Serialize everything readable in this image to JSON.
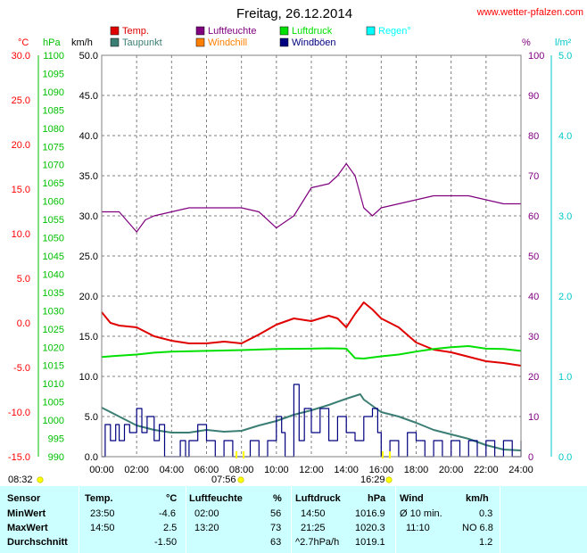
{
  "title": "Freitag, 26.12.2014",
  "site": "www.wetter-pfalzen.com",
  "colors": {
    "temp": "#e00000",
    "dew": "#3b7e74",
    "humidity": "#800080",
    "windchill": "#ff8000",
    "pressure": "#00e000",
    "gust": "#000080",
    "rain": "#00ffff",
    "grid": "#808080",
    "sun": "#ffff00",
    "stats_bg": "#ccffff"
  },
  "axis_units": {
    "temp": "°C",
    "pressure": "hPa",
    "speed": "km/h",
    "humidity": "%",
    "rain": "l/m²"
  },
  "legend": [
    {
      "label": "Temp.",
      "color": "#e00000"
    },
    {
      "label": "Taupunkt",
      "color": "#3b7e74"
    },
    {
      "label": "Luftfeuchte",
      "color": "#800080"
    },
    {
      "label": "Windchill",
      "color": "#ff8000"
    },
    {
      "label": "Luftdruck",
      "color": "#00e000"
    },
    {
      "label": "Windböen",
      "color": "#000080"
    },
    {
      "label": "Regen°",
      "color": "#00ffff"
    }
  ],
  "sun": {
    "sunrise": "08:32",
    "sunset": "16:29",
    "sunrise_marker": "07:56"
  },
  "chart_data": {
    "type": "line",
    "x_labels": [
      "00:00",
      "02:00",
      "04:00",
      "06:00",
      "08:00",
      "10:00",
      "12:00",
      "14:00",
      "16:00",
      "18:00",
      "20:00",
      "22:00",
      "24:00"
    ],
    "xlim": [
      0,
      24
    ],
    "axes": {
      "temp": {
        "ticks": [
          "30.0",
          "25.0",
          "20.0",
          "15.0",
          "10.0",
          "5.0",
          "0.0",
          "-5.0",
          "-10.0",
          "-15.0"
        ],
        "ylim": [
          -15,
          30
        ]
      },
      "pressure": {
        "ticks": [
          "1100",
          "1095",
          "1090",
          "1085",
          "1080",
          "1075",
          "1070",
          "1065",
          "1060",
          "1055",
          "1050",
          "1045",
          "1040",
          "1035",
          "1030",
          "1025",
          "1020",
          "1015",
          "1010",
          "1005",
          "1000",
          "995",
          "990"
        ],
        "ylim": [
          990,
          1100
        ]
      },
      "speed": {
        "ticks": [
          "50.0",
          "45.0",
          "40.0",
          "35.0",
          "30.0",
          "25.0",
          "20.0",
          "15.0",
          "10.0",
          "5.0",
          "0.0"
        ],
        "ylim": [
          0,
          50
        ]
      },
      "humidity": {
        "ticks": [
          "100",
          "90",
          "80",
          "70",
          "60",
          "50",
          "40",
          "30",
          "20",
          "10",
          "0"
        ],
        "ylim": [
          0,
          100
        ]
      },
      "rain": {
        "ticks": [
          "5.0",
          "4.0",
          "3.0",
          "2.0",
          "1.0",
          "0.0"
        ],
        "ylim": [
          0,
          5
        ]
      }
    },
    "series": [
      {
        "name": "Temp.",
        "axis": "temp",
        "color": "#e00000",
        "points": [
          [
            0,
            1.2
          ],
          [
            0.5,
            0.0
          ],
          [
            1,
            -0.3
          ],
          [
            2,
            -0.5
          ],
          [
            3,
            -1.5
          ],
          [
            4,
            -2.0
          ],
          [
            5,
            -2.3
          ],
          [
            6,
            -2.3
          ],
          [
            7,
            -2.1
          ],
          [
            8,
            -2.3
          ],
          [
            9,
            -1.3
          ],
          [
            10,
            -0.2
          ],
          [
            11,
            0.5
          ],
          [
            12,
            0.2
          ],
          [
            13,
            0.8
          ],
          [
            13.5,
            0.5
          ],
          [
            14,
            -0.5
          ],
          [
            14.5,
            1.0
          ],
          [
            15,
            2.3
          ],
          [
            15.5,
            1.5
          ],
          [
            16,
            0.5
          ],
          [
            17,
            -0.5
          ],
          [
            18,
            -2.2
          ],
          [
            19,
            -3.0
          ],
          [
            20,
            -3.3
          ],
          [
            21,
            -3.8
          ],
          [
            22,
            -4.3
          ],
          [
            23,
            -4.5
          ],
          [
            24,
            -4.8
          ]
        ]
      },
      {
        "name": "Taupunkt",
        "axis": "temp",
        "color": "#3b7e74",
        "points": [
          [
            0,
            -9.5
          ],
          [
            1,
            -10.5
          ],
          [
            2,
            -11.5
          ],
          [
            3,
            -12.0
          ],
          [
            4,
            -12.3
          ],
          [
            5,
            -12.3
          ],
          [
            6,
            -12.0
          ],
          [
            7,
            -12.2
          ],
          [
            8,
            -12.1
          ],
          [
            9,
            -11.5
          ],
          [
            10,
            -11.0
          ],
          [
            11,
            -10.3
          ],
          [
            12,
            -9.8
          ],
          [
            13,
            -9.2
          ],
          [
            14,
            -8.5
          ],
          [
            14.8,
            -8.0
          ],
          [
            15,
            -8.6
          ],
          [
            16,
            -10.0
          ],
          [
            17,
            -10.5
          ],
          [
            18,
            -11.2
          ],
          [
            19,
            -12.0
          ],
          [
            20,
            -12.5
          ],
          [
            21,
            -13.0
          ],
          [
            22,
            -13.7
          ],
          [
            23,
            -14.2
          ],
          [
            24,
            -14.3
          ]
        ]
      },
      {
        "name": "Luftfeuchte",
        "axis": "humidity",
        "color": "#800080",
        "points": [
          [
            0,
            61
          ],
          [
            1,
            61
          ],
          [
            2,
            56
          ],
          [
            2.5,
            59
          ],
          [
            3,
            60
          ],
          [
            4,
            61
          ],
          [
            5,
            62
          ],
          [
            6,
            62
          ],
          [
            7,
            62
          ],
          [
            8,
            62
          ],
          [
            9,
            61
          ],
          [
            10,
            57
          ],
          [
            11,
            60
          ],
          [
            12,
            67
          ],
          [
            13,
            68
          ],
          [
            13.5,
            70
          ],
          [
            14,
            73
          ],
          [
            14.5,
            70
          ],
          [
            15,
            62
          ],
          [
            15.5,
            60
          ],
          [
            16,
            62
          ],
          [
            17,
            63
          ],
          [
            18,
            64
          ],
          [
            19,
            65
          ],
          [
            20,
            65
          ],
          [
            21,
            65
          ],
          [
            22,
            64
          ],
          [
            23,
            63
          ],
          [
            24,
            63
          ]
        ]
      },
      {
        "name": "Luftdruck",
        "axis": "pressure",
        "color": "#00e000",
        "points": [
          [
            0,
            1017.3
          ],
          [
            1,
            1017.7
          ],
          [
            2,
            1018.0
          ],
          [
            3,
            1018.5
          ],
          [
            4,
            1018.8
          ],
          [
            6,
            1019.0
          ],
          [
            8,
            1019.2
          ],
          [
            10,
            1019.5
          ],
          [
            12,
            1019.6
          ],
          [
            13,
            1019.7
          ],
          [
            14,
            1019.6
          ],
          [
            14.5,
            1017.0
          ],
          [
            15,
            1016.9
          ],
          [
            15.5,
            1017.2
          ],
          [
            16,
            1017.5
          ],
          [
            17,
            1018.0
          ],
          [
            18,
            1018.8
          ],
          [
            19,
            1019.5
          ],
          [
            20,
            1020.0
          ],
          [
            21,
            1020.3
          ],
          [
            22,
            1019.6
          ],
          [
            23,
            1019.5
          ],
          [
            24,
            1019.0
          ]
        ]
      },
      {
        "name": "Windböen",
        "axis": "speed",
        "color": "#000080",
        "points": [
          [
            0,
            0
          ],
          [
            0.2,
            4
          ],
          [
            0.5,
            2
          ],
          [
            0.8,
            4
          ],
          [
            1,
            2
          ],
          [
            1.3,
            4
          ],
          [
            1.6,
            3
          ],
          [
            2,
            6
          ],
          [
            2.3,
            3
          ],
          [
            2.6,
            5
          ],
          [
            3,
            2
          ],
          [
            3.3,
            4
          ],
          [
            3.6,
            0
          ],
          [
            4,
            0
          ],
          [
            4.5,
            2
          ],
          [
            4.8,
            0
          ],
          [
            5,
            2
          ],
          [
            5.5,
            4
          ],
          [
            6,
            2
          ],
          [
            6.5,
            0
          ],
          [
            7,
            2
          ],
          [
            7.5,
            0
          ],
          [
            8,
            0
          ],
          [
            8.5,
            2
          ],
          [
            9,
            0
          ],
          [
            9.5,
            2
          ],
          [
            10,
            5
          ],
          [
            10.3,
            3
          ],
          [
            10.5,
            0
          ],
          [
            11,
            9
          ],
          [
            11.3,
            2
          ],
          [
            11.6,
            6
          ],
          [
            12,
            3
          ],
          [
            12.5,
            6
          ],
          [
            13,
            2
          ],
          [
            13.5,
            5
          ],
          [
            14,
            3
          ],
          [
            14.5,
            2
          ],
          [
            15,
            5
          ],
          [
            15.5,
            6
          ],
          [
            15.8,
            3
          ],
          [
            16,
            0
          ],
          [
            16.5,
            2
          ],
          [
            17,
            0
          ],
          [
            17.5,
            3
          ],
          [
            18,
            2
          ],
          [
            18.5,
            0
          ],
          [
            19,
            2
          ],
          [
            19.5,
            0
          ],
          [
            20,
            2
          ],
          [
            20.5,
            0
          ],
          [
            21,
            2
          ],
          [
            21.5,
            0
          ],
          [
            22,
            2
          ],
          [
            22.5,
            0
          ],
          [
            23,
            2
          ],
          [
            23.5,
            0
          ],
          [
            24,
            2
          ]
        ]
      }
    ]
  },
  "stats": {
    "headers": {
      "sensor": "Sensor",
      "temp": "Temp.",
      "temp_unit": "°C",
      "hum": "Luftfeuchte",
      "hum_unit": "%",
      "press": "Luftdruck",
      "press_unit": "hPa",
      "wind": "Wind",
      "wind_unit": "km/h"
    },
    "rows": [
      {
        "label": "MinWert",
        "temp_time": "23:50",
        "temp_val": "-4.6",
        "hum_time": "02:00",
        "hum_val": "56",
        "press_time": "14:50",
        "press_val": "1016.9",
        "wind_time": "Ø 10 min.",
        "wind_val": "0.3"
      },
      {
        "label": "MaxWert",
        "temp_time": "14:50",
        "temp_val": "2.5",
        "hum_time": "13:20",
        "hum_val": "73",
        "press_time": "21:25",
        "press_val": "1020.3",
        "wind_time": "11:10",
        "wind_val": "NO 6.8"
      },
      {
        "label": "Durchschnitt",
        "temp_time": "",
        "temp_val": "-1.50",
        "hum_time": "",
        "hum_val": "63",
        "press_time": "^2.7hPa/h",
        "press_val": "1019.1",
        "wind_time": "",
        "wind_val": "1.2"
      }
    ]
  }
}
